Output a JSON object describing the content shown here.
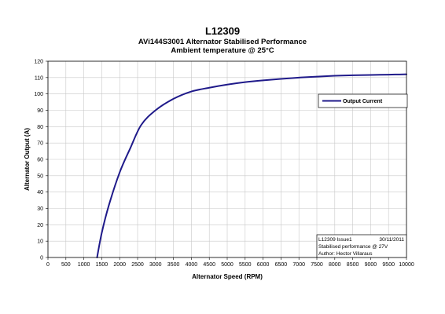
{
  "chart_data": {
    "type": "line",
    "title": "L12309",
    "subtitle_1": "AVi144S3001 Alternator Stabilised Performance",
    "subtitle_2": "Ambient temperature @ 25°C",
    "xlabel": "Alternator Speed (RPM)",
    "ylabel": "Alternator Output (A)",
    "xlim": [
      0,
      10000
    ],
    "ylim": [
      0,
      120
    ],
    "xticks": [
      "0",
      "500",
      "1000",
      "1500",
      "2000",
      "2500",
      "3000",
      "3500",
      "4000",
      "4500",
      "5000",
      "5500",
      "6000",
      "6500",
      "7000",
      "7500",
      "8000",
      "8500",
      "9000",
      "9500",
      "10000"
    ],
    "yticks": [
      "0",
      "10",
      "20",
      "30",
      "40",
      "50",
      "60",
      "70",
      "80",
      "90",
      "100",
      "110",
      "120"
    ],
    "grid": true,
    "legend_position": "right",
    "series": [
      {
        "name": "Output Current",
        "color": "#1f1a8a",
        "x": [
          1370,
          1500,
          1700,
          2000,
          2300,
          2600,
          3000,
          3500,
          4000,
          4500,
          5000,
          5500,
          6000,
          6500,
          7000,
          7500,
          8000,
          8500,
          9000,
          9500,
          10000
        ],
        "y": [
          0,
          15,
          32,
          52,
          67,
          81,
          90,
          97,
          101.5,
          103.8,
          105.7,
          107.2,
          108.3,
          109.2,
          110.0,
          110.6,
          111.1,
          111.4,
          111.6,
          111.8,
          112.0
        ]
      }
    ]
  },
  "info_box": {
    "line1_left": "L12309 Issue1",
    "line1_right": "30/11/2011",
    "line2": "Stabilised performance @ 27V",
    "line3": "Author: Hector Villaraus"
  }
}
